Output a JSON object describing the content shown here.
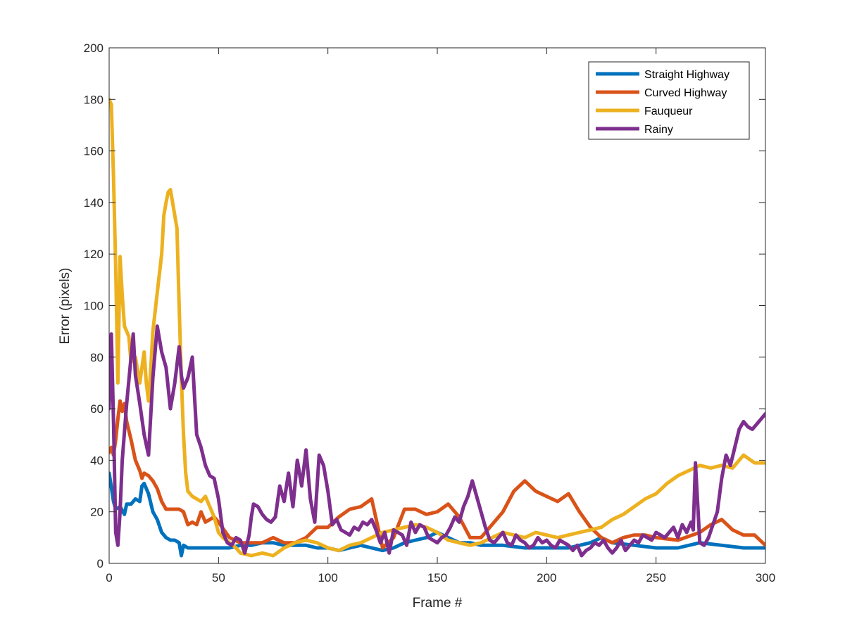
{
  "chart_data": {
    "type": "line",
    "title": "",
    "xlabel": "Frame #",
    "ylabel": "Error (pixels)",
    "xlim": [
      0,
      300
    ],
    "ylim": [
      0,
      200
    ],
    "xticks": [
      0,
      50,
      100,
      150,
      200,
      250,
      300
    ],
    "yticks": [
      0,
      20,
      40,
      60,
      80,
      100,
      120,
      140,
      160,
      180,
      200
    ],
    "grid": false,
    "legend_position": "top-right",
    "series": [
      {
        "name": "Straight Highway",
        "color": "#0072BD",
        "x": [
          0,
          2,
          3,
          5,
          7,
          8,
          10,
          12,
          14,
          15,
          16,
          18,
          20,
          22,
          24,
          26,
          28,
          30,
          32,
          33,
          34,
          36,
          40,
          45,
          50,
          55,
          60,
          65,
          70,
          75,
          80,
          85,
          90,
          95,
          100,
          105,
          110,
          115,
          120,
          125,
          130,
          135,
          140,
          145,
          150,
          155,
          160,
          165,
          170,
          180,
          190,
          200,
          210,
          220,
          225,
          230,
          240,
          250,
          260,
          270,
          280,
          290,
          300
        ],
        "y": [
          35,
          24,
          21,
          22,
          19,
          23,
          23,
          25,
          24,
          30,
          31,
          27,
          20,
          17,
          12,
          10,
          9,
          9,
          8,
          3,
          7,
          6,
          6,
          6,
          6,
          6,
          7,
          7,
          8,
          8,
          7,
          7,
          7,
          6,
          6,
          5,
          6,
          7,
          6,
          5,
          6,
          8,
          9,
          10,
          12,
          10,
          8,
          8,
          7,
          7,
          6,
          6,
          6,
          8,
          10,
          8,
          7,
          6,
          6,
          8,
          7,
          6,
          6
        ]
      },
      {
        "name": "Curved Highway",
        "color": "#D95319",
        "x": [
          0,
          1,
          2,
          3,
          4,
          5,
          6,
          7,
          8,
          10,
          12,
          14,
          15,
          16,
          18,
          20,
          22,
          24,
          26,
          28,
          30,
          32,
          34,
          36,
          38,
          40,
          42,
          44,
          46,
          48,
          50,
          55,
          60,
          65,
          70,
          75,
          80,
          85,
          90,
          95,
          100,
          105,
          110,
          115,
          120,
          125,
          130,
          135,
          140,
          145,
          150,
          155,
          160,
          165,
          170,
          175,
          180,
          185,
          190,
          195,
          200,
          205,
          210,
          215,
          220,
          225,
          230,
          235,
          240,
          245,
          250,
          260,
          270,
          275,
          280,
          285,
          290,
          295,
          300
        ],
        "y": [
          43,
          45,
          42,
          48,
          56,
          63,
          59,
          62,
          55,
          48,
          40,
          36,
          33,
          35,
          34,
          32,
          29,
          24,
          21,
          21,
          21,
          21,
          20,
          15,
          16,
          15,
          20,
          16,
          17,
          18,
          16,
          10,
          8,
          8,
          8,
          10,
          8,
          8,
          10,
          14,
          14,
          18,
          21,
          22,
          25,
          6,
          10,
          21,
          21,
          19,
          20,
          23,
          18,
          10,
          10,
          15,
          20,
          28,
          32,
          28,
          26,
          24,
          27,
          20,
          14,
          10,
          8,
          10,
          11,
          11,
          10,
          9,
          12,
          15,
          17,
          13,
          11,
          11,
          7
        ]
      },
      {
        "name": "Fauqueur",
        "color": "#EDB120",
        "x": [
          0,
          1,
          2,
          3,
          4,
          5,
          6,
          7,
          8,
          9,
          10,
          12,
          14,
          16,
          17,
          18,
          19,
          20,
          22,
          24,
          25,
          26,
          27,
          28,
          29,
          30,
          31,
          32,
          33,
          34,
          35,
          36,
          38,
          40,
          42,
          44,
          46,
          48,
          50,
          52,
          55,
          58,
          60,
          65,
          70,
          75,
          80,
          85,
          90,
          95,
          100,
          105,
          110,
          115,
          120,
          125,
          130,
          135,
          140,
          145,
          150,
          155,
          160,
          165,
          170,
          175,
          180,
          185,
          190,
          195,
          200,
          205,
          210,
          215,
          220,
          225,
          230,
          235,
          240,
          245,
          250,
          255,
          260,
          265,
          270,
          275,
          280,
          285,
          290,
          295,
          300
        ],
        "y": [
          180,
          178,
          150,
          115,
          70,
          119,
          104,
          92,
          90,
          88,
          78,
          80,
          70,
          82,
          70,
          63,
          75,
          90,
          105,
          120,
          135,
          140,
          144,
          145,
          140,
          135,
          130,
          100,
          72,
          50,
          35,
          28,
          26,
          25,
          24,
          26,
          22,
          18,
          12,
          10,
          8,
          6,
          4,
          3,
          4,
          3,
          6,
          8,
          9,
          8,
          6,
          5,
          7,
          8,
          10,
          12,
          13,
          14,
          15,
          14,
          12,
          9,
          8,
          7,
          8,
          10,
          12,
          11,
          10,
          12,
          11,
          10,
          11,
          12,
          13,
          14,
          17,
          19,
          22,
          25,
          27,
          31,
          34,
          36,
          38,
          37,
          38,
          37,
          42,
          39,
          39
        ]
      },
      {
        "name": "Rainy",
        "color": "#7E2F8E",
        "x": [
          0,
          1,
          2,
          3,
          4,
          5,
          6,
          8,
          10,
          11,
          12,
          14,
          16,
          18,
          19,
          20,
          22,
          24,
          26,
          28,
          29,
          30,
          32,
          33,
          34,
          36,
          38,
          40,
          42,
          44,
          46,
          48,
          50,
          52,
          54,
          56,
          58,
          60,
          62,
          64,
          65,
          66,
          68,
          70,
          72,
          74,
          76,
          78,
          80,
          82,
          84,
          86,
          88,
          90,
          92,
          94,
          96,
          98,
          100,
          102,
          104,
          106,
          108,
          110,
          112,
          114,
          116,
          118,
          120,
          122,
          124,
          126,
          128,
          130,
          132,
          134,
          136,
          138,
          140,
          142,
          144,
          146,
          148,
          150,
          152,
          154,
          156,
          158,
          160,
          162,
          164,
          166,
          168,
          170,
          172,
          174,
          176,
          178,
          180,
          182,
          184,
          186,
          188,
          190,
          192,
          194,
          196,
          198,
          200,
          202,
          204,
          206,
          208,
          210,
          212,
          214,
          216,
          218,
          220,
          222,
          224,
          226,
          228,
          230,
          232,
          234,
          236,
          238,
          240,
          242,
          244,
          246,
          248,
          250,
          252,
          254,
          256,
          258,
          260,
          262,
          264,
          266,
          267,
          268,
          270,
          272,
          274,
          276,
          278,
          280,
          282,
          284,
          286,
          288,
          290,
          292,
          294,
          296,
          298,
          300
        ],
        "y": [
          60,
          89,
          55,
          12,
          7,
          20,
          40,
          62,
          80,
          89,
          73,
          62,
          50,
          42,
          57,
          72,
          92,
          82,
          76,
          60,
          65,
          70,
          84,
          73,
          68,
          72,
          80,
          50,
          45,
          38,
          34,
          33,
          25,
          12,
          8,
          7,
          10,
          9,
          4,
          11,
          18,
          23,
          22,
          19,
          17,
          16,
          18,
          30,
          24,
          35,
          22,
          40,
          30,
          44,
          25,
          16,
          42,
          38,
          28,
          15,
          17,
          13,
          12,
          11,
          14,
          13,
          16,
          15,
          17,
          13,
          8,
          12,
          4,
          13,
          12,
          11,
          7,
          16,
          12,
          15,
          14,
          10,
          9,
          8,
          10,
          11,
          14,
          18,
          16,
          22,
          26,
          32,
          26,
          20,
          14,
          9,
          8,
          10,
          12,
          8,
          7,
          11,
          9,
          8,
          6,
          7,
          10,
          8,
          9,
          7,
          6,
          9,
          8,
          7,
          5,
          7,
          3,
          5,
          6,
          8,
          7,
          9,
          6,
          4,
          6,
          9,
          5,
          7,
          9,
          8,
          11,
          10,
          9,
          12,
          11,
          10,
          12,
          14,
          10,
          15,
          12,
          16,
          13,
          39,
          8,
          7,
          10,
          15,
          20,
          33,
          42,
          38,
          45,
          52,
          55,
          53,
          52,
          54,
          56,
          58
        ]
      }
    ]
  }
}
